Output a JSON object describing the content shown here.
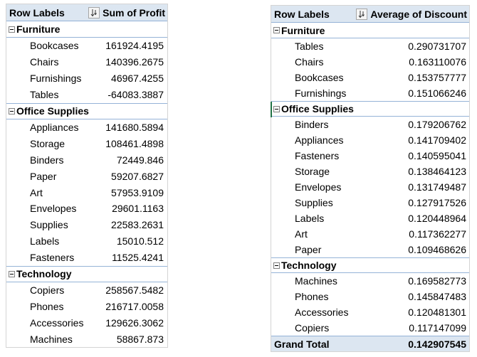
{
  "left_pivot": {
    "row_labels_header": "Row Labels",
    "value_header": "Sum of Profit",
    "categories": [
      {
        "name": "Furniture",
        "items": [
          {
            "name": "Bookcases",
            "value": "161924.4195"
          },
          {
            "name": "Chairs",
            "value": "140396.2675"
          },
          {
            "name": "Furnishings",
            "value": "46967.4255"
          },
          {
            "name": "Tables",
            "value": "-64083.3887"
          }
        ]
      },
      {
        "name": "Office Supplies",
        "items": [
          {
            "name": "Appliances",
            "value": "141680.5894"
          },
          {
            "name": "Storage",
            "value": "108461.4898"
          },
          {
            "name": "Binders",
            "value": "72449.846"
          },
          {
            "name": "Paper",
            "value": "59207.6827"
          },
          {
            "name": "Art",
            "value": "57953.9109"
          },
          {
            "name": "Envelopes",
            "value": "29601.1163"
          },
          {
            "name": "Supplies",
            "value": "22583.2631"
          },
          {
            "name": "Labels",
            "value": "15010.512"
          },
          {
            "name": "Fasteners",
            "value": "11525.4241"
          }
        ]
      },
      {
        "name": "Technology",
        "items": [
          {
            "name": "Copiers",
            "value": "258567.5482"
          },
          {
            "name": "Phones",
            "value": "216717.0058"
          },
          {
            "name": "Accessories",
            "value": "129626.3062"
          },
          {
            "name": "Machines",
            "value": "58867.873"
          }
        ]
      }
    ]
  },
  "right_pivot": {
    "row_labels_header": "Row Labels",
    "value_header": "Average of Discount",
    "categories": [
      {
        "name": "Furniture",
        "items": [
          {
            "name": "Tables",
            "value": "0.290731707"
          },
          {
            "name": "Chairs",
            "value": "0.163110076"
          },
          {
            "name": "Bookcases",
            "value": "0.153757777"
          },
          {
            "name": "Furnishings",
            "value": "0.151066246"
          }
        ]
      },
      {
        "name": "Office Supplies",
        "items": [
          {
            "name": "Binders",
            "value": "0.179206762"
          },
          {
            "name": "Appliances",
            "value": "0.141709402"
          },
          {
            "name": "Fasteners",
            "value": "0.140595041"
          },
          {
            "name": "Storage",
            "value": "0.138464123"
          },
          {
            "name": "Envelopes",
            "value": "0.131749487"
          },
          {
            "name": "Supplies",
            "value": "0.127917526"
          },
          {
            "name": "Labels",
            "value": "0.120448964"
          },
          {
            "name": "Art",
            "value": "0.117362277"
          },
          {
            "name": "Paper",
            "value": "0.109468626"
          }
        ]
      },
      {
        "name": "Technology",
        "items": [
          {
            "name": "Machines",
            "value": "0.169582773"
          },
          {
            "name": "Phones",
            "value": "0.145847483"
          },
          {
            "name": "Accessories",
            "value": "0.120481301"
          },
          {
            "name": "Copiers",
            "value": "0.117147099"
          }
        ]
      }
    ],
    "grand_total_label": "Grand Total",
    "grand_total_value": "0.142907545"
  },
  "colors": {
    "header_fill": "#dce6f1",
    "border_blue": "#95b3d7",
    "selection_green": "#217346"
  },
  "icons": {
    "filter_sort": "filter-sort-icon",
    "collapse": "collapse-minus-icon"
  }
}
